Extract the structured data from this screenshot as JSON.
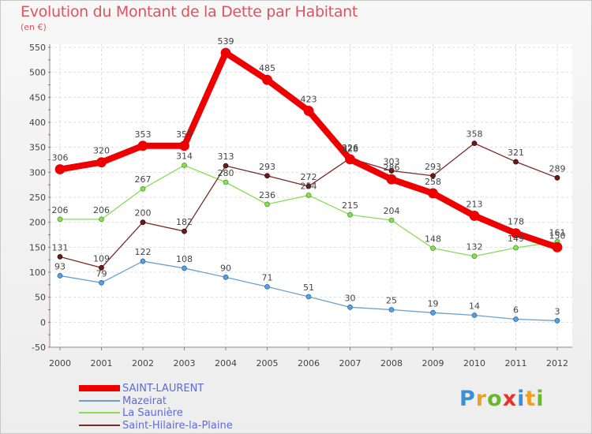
{
  "header": {
    "title": "Evolution du Montant de la Dette par Habitant",
    "subtitle": "(en €)"
  },
  "brand": {
    "text": "Proxiti",
    "letters": [
      {
        "ch": "P",
        "color": "#3b8fd6"
      },
      {
        "ch": "r",
        "color": "#f0a020"
      },
      {
        "ch": "o",
        "color": "#6ab82c"
      },
      {
        "ch": "x",
        "color": "#e8322c"
      },
      {
        "ch": "i",
        "color": "#3b8fd6"
      },
      {
        "ch": "t",
        "color": "#f0a020"
      },
      {
        "ch": "i",
        "color": "#6ab82c"
      }
    ]
  },
  "chart_data": {
    "type": "line",
    "title": "Evolution du Montant de la Dette par Habitant",
    "subtitle": "(en €)",
    "xlabel": "",
    "ylabel": "",
    "x": [
      "2000",
      "2001",
      "2002",
      "2003",
      "2004",
      "2005",
      "2006",
      "2007",
      "2008",
      "2009",
      "2010",
      "2011",
      "2012"
    ],
    "ylim": [
      -50,
      550
    ],
    "yticks": [
      -50,
      0,
      50,
      100,
      150,
      200,
      250,
      300,
      350,
      400,
      450,
      500,
      550
    ],
    "grid": true,
    "legend_position": "bottom-left",
    "series": [
      {
        "name": "SAINT-LAURENT",
        "color": "#ee0000",
        "values": [
          306,
          320,
          353,
          353,
          539,
          485,
          423,
          326,
          286,
          258,
          213,
          178,
          150
        ],
        "labels": [
          "306",
          "320",
          "353",
          "353",
          "539",
          "485",
          "423",
          "326",
          "286",
          "258",
          "213",
          "178",
          "150"
        ]
      },
      {
        "name": "Mazeirat",
        "color": "#6aa0d0",
        "values": [
          93,
          79,
          122,
          108,
          90,
          71,
          51,
          30,
          25,
          19,
          14,
          6,
          3
        ],
        "labels": [
          "93",
          "79",
          "122",
          "108",
          "90",
          "71",
          "51",
          "30",
          "25",
          "19",
          "14",
          "6",
          "3"
        ]
      },
      {
        "name": "La Saunière",
        "color": "#88dd55",
        "values": [
          206,
          206,
          267,
          314,
          280,
          236,
          254,
          215,
          204,
          148,
          132,
          149,
          161
        ],
        "labels": [
          "206",
          "206",
          "267",
          "314",
          "280",
          "236",
          "254",
          "215",
          "204",
          "148",
          "132",
          "149",
          "161"
        ]
      },
      {
        "name": "Saint-Hilaire-la-Plaine",
        "color": "#7a2a2a",
        "values": [
          131,
          109,
          200,
          182,
          313,
          293,
          272,
          328,
          303,
          293,
          358,
          321,
          289
        ],
        "labels": [
          "131",
          "109",
          "200",
          "182",
          "313",
          "293",
          "272",
          "328",
          "303",
          "293",
          "358",
          "321",
          "289"
        ]
      }
    ]
  }
}
